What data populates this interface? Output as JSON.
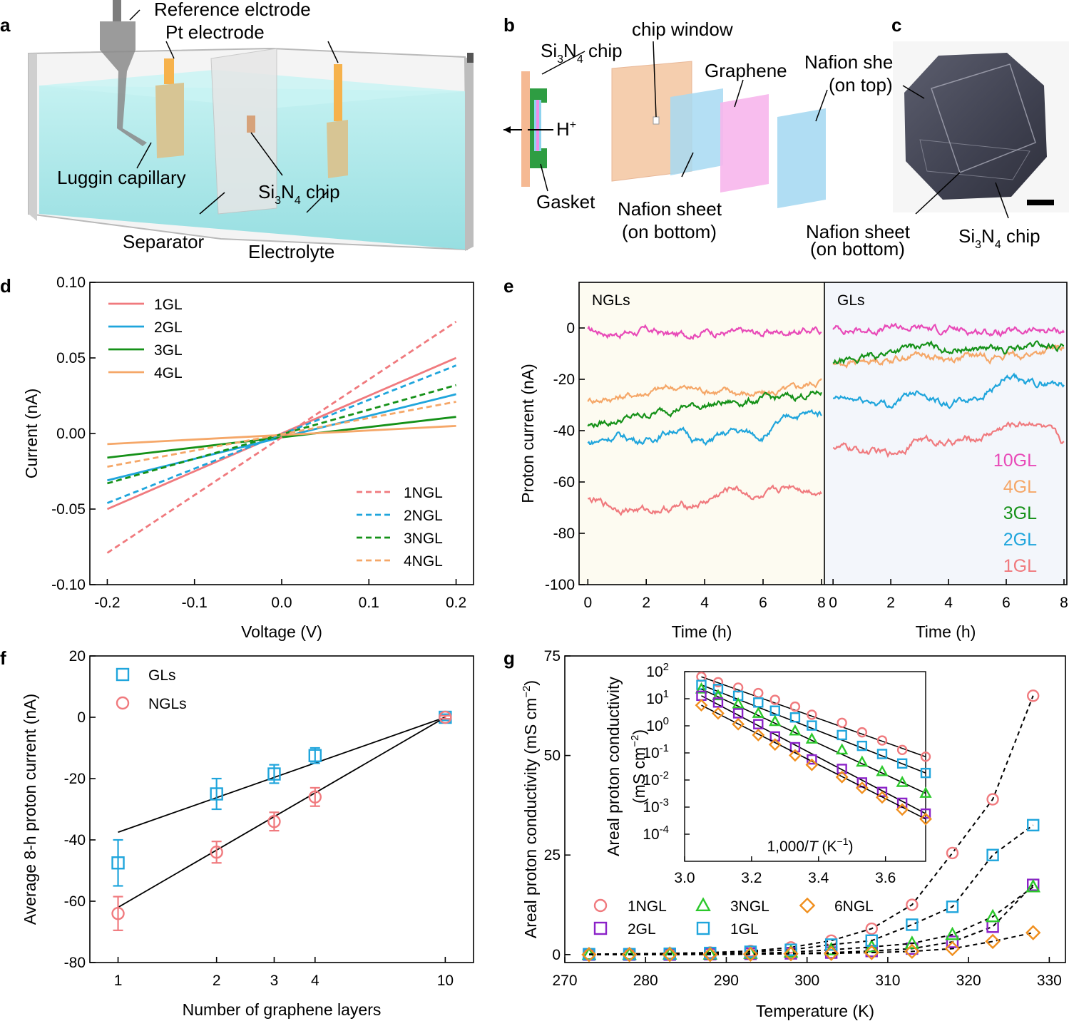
{
  "panels": {
    "a": {
      "letter": "a",
      "labels": {
        "ref": "Reference elctrode",
        "pt": "Pt electrode",
        "luggin": "Luggin capillary",
        "chip_pre": "Si",
        "chip_s1": "3",
        "chip_mid": "N",
        "chip_s2": "4",
        "chip_post": " chip",
        "separator": "Separator",
        "electrolyte": "Electrolyte"
      }
    },
    "b": {
      "letter": "b",
      "labels": {
        "chip_pre": "Si",
        "chip_s1": "3",
        "chip_mid": "N",
        "chip_s2": "4",
        "chip_post": " chip",
        "window": "chip window",
        "hplus": "H",
        "hplus_sup": "+",
        "graphene": "Graphene",
        "nafion_top1": "Nafion sheet",
        "nafion_top2": "(on top)",
        "gasket": "Gasket",
        "nafion_bot1": "Nafion sheet",
        "nafion_bot2": "(on bottom)"
      }
    },
    "c": {
      "letter": "c",
      "labels": {
        "nafion_top1": "Nafion sheet",
        "nafion_top2": "(on top)",
        "nafion_bot1": "Nafion sheet",
        "nafion_bot2": "(on bottom)",
        "chip_pre": "Si",
        "chip_s1": "3",
        "chip_mid": "N",
        "chip_s2": "4",
        "chip_post": " chip"
      }
    },
    "d": {
      "letter": "d"
    },
    "e": {
      "letter": "e"
    },
    "f": {
      "letter": "f"
    },
    "g": {
      "letter": "g"
    }
  },
  "chart_data": [
    {
      "id": "d",
      "type": "line",
      "xlabel": "Voltage (V)",
      "ylabel": "Current (nA)",
      "xlim": [
        -0.2,
        0.2
      ],
      "ylim": [
        -0.1,
        0.1
      ],
      "xticks": [
        "-0.2",
        "-0.1",
        "0.0",
        "0.1",
        "0.2"
      ],
      "yticks": [
        "-0.10",
        "-0.05",
        "0.00",
        "0.05",
        "0.10"
      ],
      "series": [
        {
          "name": "1GL",
          "color": "#f07a7e",
          "style": "solid",
          "x": [
            -0.2,
            0.2
          ],
          "y": [
            -0.05,
            0.05
          ]
        },
        {
          "name": "2GL",
          "color": "#1fa5dc",
          "style": "solid",
          "x": [
            -0.2,
            0.2
          ],
          "y": [
            -0.031,
            0.026
          ]
        },
        {
          "name": "3GL",
          "color": "#159118",
          "style": "solid",
          "x": [
            -0.2,
            0.2
          ],
          "y": [
            -0.016,
            0.011
          ]
        },
        {
          "name": "4GL",
          "color": "#f5a768",
          "style": "solid",
          "x": [
            -0.2,
            0.2
          ],
          "y": [
            -0.007,
            0.005
          ]
        },
        {
          "name": "1NGL",
          "color": "#f07a7e",
          "style": "dashed",
          "x": [
            -0.2,
            0.2
          ],
          "y": [
            -0.079,
            0.074
          ]
        },
        {
          "name": "2NGL",
          "color": "#1fa5dc",
          "style": "dashed",
          "x": [
            -0.2,
            0.2
          ],
          "y": [
            -0.046,
            0.045
          ]
        },
        {
          "name": "3NGL",
          "color": "#159118",
          "style": "dashed",
          "x": [
            -0.2,
            0.2
          ],
          "y": [
            -0.033,
            0.032
          ]
        },
        {
          "name": "4NGL",
          "color": "#f5a768",
          "style": "dashed",
          "x": [
            -0.2,
            0.2
          ],
          "y": [
            -0.022,
            0.021
          ]
        }
      ]
    },
    {
      "id": "e",
      "type": "line",
      "ylabel": "Proton current (nA)",
      "ylim": [
        -100,
        10
      ],
      "yticks": [
        "0",
        "-20",
        "-40",
        "-60",
        "-80",
        "-100"
      ],
      "subpanels": [
        {
          "title": "NGLs",
          "xlabel": "Time (h)",
          "xlim": [
            0,
            8
          ],
          "xticks": [
            "0",
            "2",
            "4",
            "6",
            "8"
          ],
          "bg": "#fdfbf1"
        },
        {
          "title": "GLs",
          "xlabel": "Time (h)",
          "xlim": [
            0,
            8
          ],
          "xticks": [
            "0",
            "2",
            "4",
            "6",
            "8"
          ],
          "bg": "#f3f6fb"
        }
      ],
      "legend": [
        {
          "name": "10GL",
          "color": "#e84ab8"
        },
        {
          "name": "4GL",
          "color": "#f5a768"
        },
        {
          "name": "3GL",
          "color": "#159118"
        },
        {
          "name": "2GL",
          "color": "#1fa5dc"
        },
        {
          "name": "1GL",
          "color": "#f07a7e"
        }
      ],
      "series": [
        {
          "panel": 0,
          "name": "10NGL",
          "color": "#e84ab8",
          "x": [
            0,
            1,
            2,
            3,
            4,
            5,
            6,
            7,
            8
          ],
          "y": [
            -1,
            -2,
            -1,
            -3,
            -1,
            -2,
            -2,
            -1,
            -1
          ]
        },
        {
          "panel": 0,
          "name": "4NGL",
          "color": "#f5a768",
          "x": [
            0,
            1,
            2,
            3,
            4,
            5,
            6,
            7,
            8
          ],
          "y": [
            -28,
            -27,
            -25,
            -23,
            -24,
            -25,
            -26,
            -24,
            -20
          ]
        },
        {
          "panel": 0,
          "name": "3NGL",
          "color": "#159118",
          "x": [
            0,
            1,
            2,
            3,
            4,
            5,
            6,
            7,
            8
          ],
          "y": [
            -38,
            -36,
            -34,
            -31,
            -30,
            -29,
            -28,
            -27,
            -25
          ]
        },
        {
          "panel": 0,
          "name": "2NGL",
          "color": "#1fa5dc",
          "x": [
            0,
            1,
            2,
            3,
            4,
            5,
            6,
            7,
            8
          ],
          "y": [
            -45,
            -42,
            -44,
            -39,
            -45,
            -40,
            -42,
            -34,
            -33
          ]
        },
        {
          "panel": 0,
          "name": "1NGL",
          "color": "#f07a7e",
          "x": [
            0,
            1,
            2,
            3,
            4,
            5,
            6,
            7,
            8
          ],
          "y": [
            -67,
            -70,
            -71,
            -70,
            -68,
            -62,
            -67,
            -61,
            -64
          ]
        },
        {
          "panel": 1,
          "name": "10GL",
          "color": "#e84ab8",
          "x": [
            0,
            1,
            2,
            3,
            4,
            5,
            6,
            7,
            8
          ],
          "y": [
            0,
            -1,
            0,
            0,
            -1,
            -1,
            -2,
            -1,
            -1
          ]
        },
        {
          "panel": 1,
          "name": "4GL",
          "color": "#f5a768",
          "x": [
            0,
            1,
            2,
            3,
            4,
            5,
            6,
            7,
            8
          ],
          "y": [
            -14,
            -13,
            -12,
            -10,
            -12,
            -11,
            -11,
            -10,
            -8
          ]
        },
        {
          "panel": 1,
          "name": "3GL",
          "color": "#159118",
          "x": [
            0,
            1,
            2,
            3,
            4,
            5,
            6,
            7,
            8
          ],
          "y": [
            -14,
            -12,
            -9,
            -7,
            -8,
            -8,
            -9,
            -7,
            -7
          ]
        },
        {
          "panel": 1,
          "name": "2GL",
          "color": "#1fa5dc",
          "x": [
            0,
            1,
            2,
            3,
            4,
            5,
            6,
            7,
            8
          ],
          "y": [
            -28,
            -28,
            -30,
            -24,
            -30,
            -27,
            -20,
            -22,
            -21
          ]
        },
        {
          "panel": 1,
          "name": "1GL",
          "color": "#f07a7e",
          "x": [
            0,
            1,
            2,
            3,
            4,
            5,
            6,
            7,
            8
          ],
          "y": [
            -46,
            -48,
            -49,
            -43,
            -45,
            -43,
            -38,
            -36,
            -45
          ]
        }
      ]
    },
    {
      "id": "f",
      "type": "scatter",
      "xlabel": "Number of graphene layers",
      "ylabel": "Average 8-h proton current (nA)",
      "xscale": "log",
      "xlim": [
        0.85,
        12
      ],
      "ylim": [
        -80,
        20
      ],
      "xticks": [
        "1",
        "2",
        "3",
        "4",
        "10"
      ],
      "yticks": [
        "20",
        "0",
        "-20",
        "-40",
        "-60",
        "-80"
      ],
      "series": [
        {
          "name": "GLs",
          "marker": "square",
          "color": "#1fa5dc",
          "x": [
            1,
            2,
            3,
            4,
            10
          ],
          "y": [
            -47.5,
            -25,
            -18.5,
            -12.5,
            0
          ],
          "err": [
            7.5,
            5,
            3,
            2.5,
            1
          ],
          "fit": [
            -37.5,
            0
          ]
        },
        {
          "name": "NGLs",
          "marker": "circle",
          "color": "#f07a7e",
          "x": [
            1,
            2,
            3,
            4,
            10
          ],
          "y": [
            -64,
            -44,
            -34,
            -26,
            0
          ],
          "err": [
            5.5,
            3.5,
            3,
            3,
            0.5
          ],
          "fit": [
            -62,
            0
          ]
        }
      ]
    },
    {
      "id": "g",
      "type": "scatter",
      "xlabel": "Temperature (K)",
      "ylabel": "Areal proton conductivity (mS cm",
      "ylabel_sup": "−2",
      "ylabel_close": ")",
      "xlim": [
        270,
        332
      ],
      "ylim": [
        -2,
        75
      ],
      "xticks": [
        "270",
        "280",
        "290",
        "300",
        "310",
        "320",
        "330"
      ],
      "yticks": [
        "0",
        "25",
        "50",
        "75"
      ],
      "series": [
        {
          "name": "1NGL",
          "marker": "circle",
          "color": "#f07a7e",
          "x": [
            273,
            278,
            283,
            288,
            293,
            298,
            303,
            308,
            313,
            318,
            323,
            328
          ],
          "y": [
            0.1,
            0.2,
            0.3,
            0.5,
            0.9,
            1.8,
            3.5,
            6.5,
            12.5,
            25.5,
            39,
            65
          ]
        },
        {
          "name": "2GL",
          "marker": "square",
          "color": "#8b22c8",
          "x": [
            273,
            278,
            283,
            288,
            293,
            298,
            303,
            308,
            313,
            318,
            323,
            328
          ],
          "y": [
            0,
            0,
            0,
            0.1,
            0.2,
            0.3,
            0.5,
            0.9,
            1.5,
            3.2,
            7,
            17.5
          ]
        },
        {
          "name": "3NGL",
          "marker": "triangle",
          "color": "#2bc82b",
          "x": [
            273,
            278,
            283,
            288,
            293,
            298,
            303,
            308,
            313,
            318,
            323,
            328
          ],
          "y": [
            0,
            0,
            0.1,
            0.1,
            0.3,
            0.6,
            1.2,
            1.9,
            2.8,
            5,
            9.5,
            17
          ]
        },
        {
          "name": "1GL",
          "marker": "square",
          "color": "#1fa5dc",
          "x": [
            273,
            278,
            283,
            288,
            293,
            298,
            303,
            308,
            313,
            318,
            323,
            328
          ],
          "y": [
            0.1,
            0.1,
            0.2,
            0.4,
            0.7,
            1.2,
            2.5,
            3.5,
            7.5,
            12,
            25,
            32.5
          ]
        },
        {
          "name": "6NGL",
          "marker": "diamond",
          "color": "#f08f1e",
          "x": [
            273,
            278,
            283,
            288,
            293,
            298,
            303,
            308,
            313,
            318,
            323,
            328
          ],
          "y": [
            0,
            0,
            0,
            0,
            0.1,
            0.2,
            0.3,
            0.5,
            0.8,
            1.5,
            3.3,
            5.5
          ]
        }
      ],
      "inset": {
        "type": "scatter",
        "yscale": "log",
        "xlabel": "1,000/",
        "xlabel_italic": "T",
        "xlabel_unit": " (K",
        "xlabel_sup": "−1",
        "xlabel_close": ")",
        "ylabel_line1": "Areal proton conductivity",
        "ylabel_line2": "(mS cm",
        "ylabel_sup": "−2",
        "ylabel_close": ")",
        "xlim": [
          3.0,
          3.7
        ],
        "ylim_exp": [
          -5,
          2
        ],
        "xticks": [
          "3.0",
          "3.2",
          "3.4",
          "3.6"
        ],
        "ytick_base": "10",
        "ytick_exps": [
          "2",
          "1",
          "0",
          "-1",
          "-2",
          "-3",
          "-4"
        ],
        "x": [
          3.05,
          3.1,
          3.16,
          3.22,
          3.27,
          3.33,
          3.38,
          3.47,
          3.53,
          3.59,
          3.65,
          3.72
        ],
        "series_log10": [
          {
            "name": "1NGL",
            "y": [
              1.81,
              1.61,
              1.41,
              1.21,
              0.96,
              0.71,
              0.41,
              0.11,
              -0.24,
              -0.54,
              -0.89,
              -1.14
            ]
          },
          {
            "name": "1GL",
            "y": [
              1.51,
              1.36,
              1.11,
              0.86,
              0.56,
              0.31,
              0.01,
              -0.34,
              -0.74,
              -1.04,
              -1.39,
              -1.74
            ]
          },
          {
            "name": "3NGL",
            "y": [
              1.36,
              1.11,
              0.81,
              0.46,
              0.16,
              -0.19,
              -0.49,
              -0.89,
              -1.34,
              -1.69,
              -2.09,
              -2.49
            ]
          },
          {
            "name": "2GL",
            "y": [
              1.11,
              0.86,
              0.46,
              0.06,
              -0.39,
              -0.79,
              -1.24,
              -1.59,
              -2.09,
              -2.44,
              -2.84,
              -3.24
            ]
          },
          {
            "name": "6NGL",
            "y": [
              0.76,
              0.46,
              0.06,
              -0.34,
              -0.69,
              -1.09,
              -1.44,
              -1.89,
              -2.29,
              -2.64,
              -3.09,
              -3.44
            ]
          }
        ]
      }
    }
  ]
}
